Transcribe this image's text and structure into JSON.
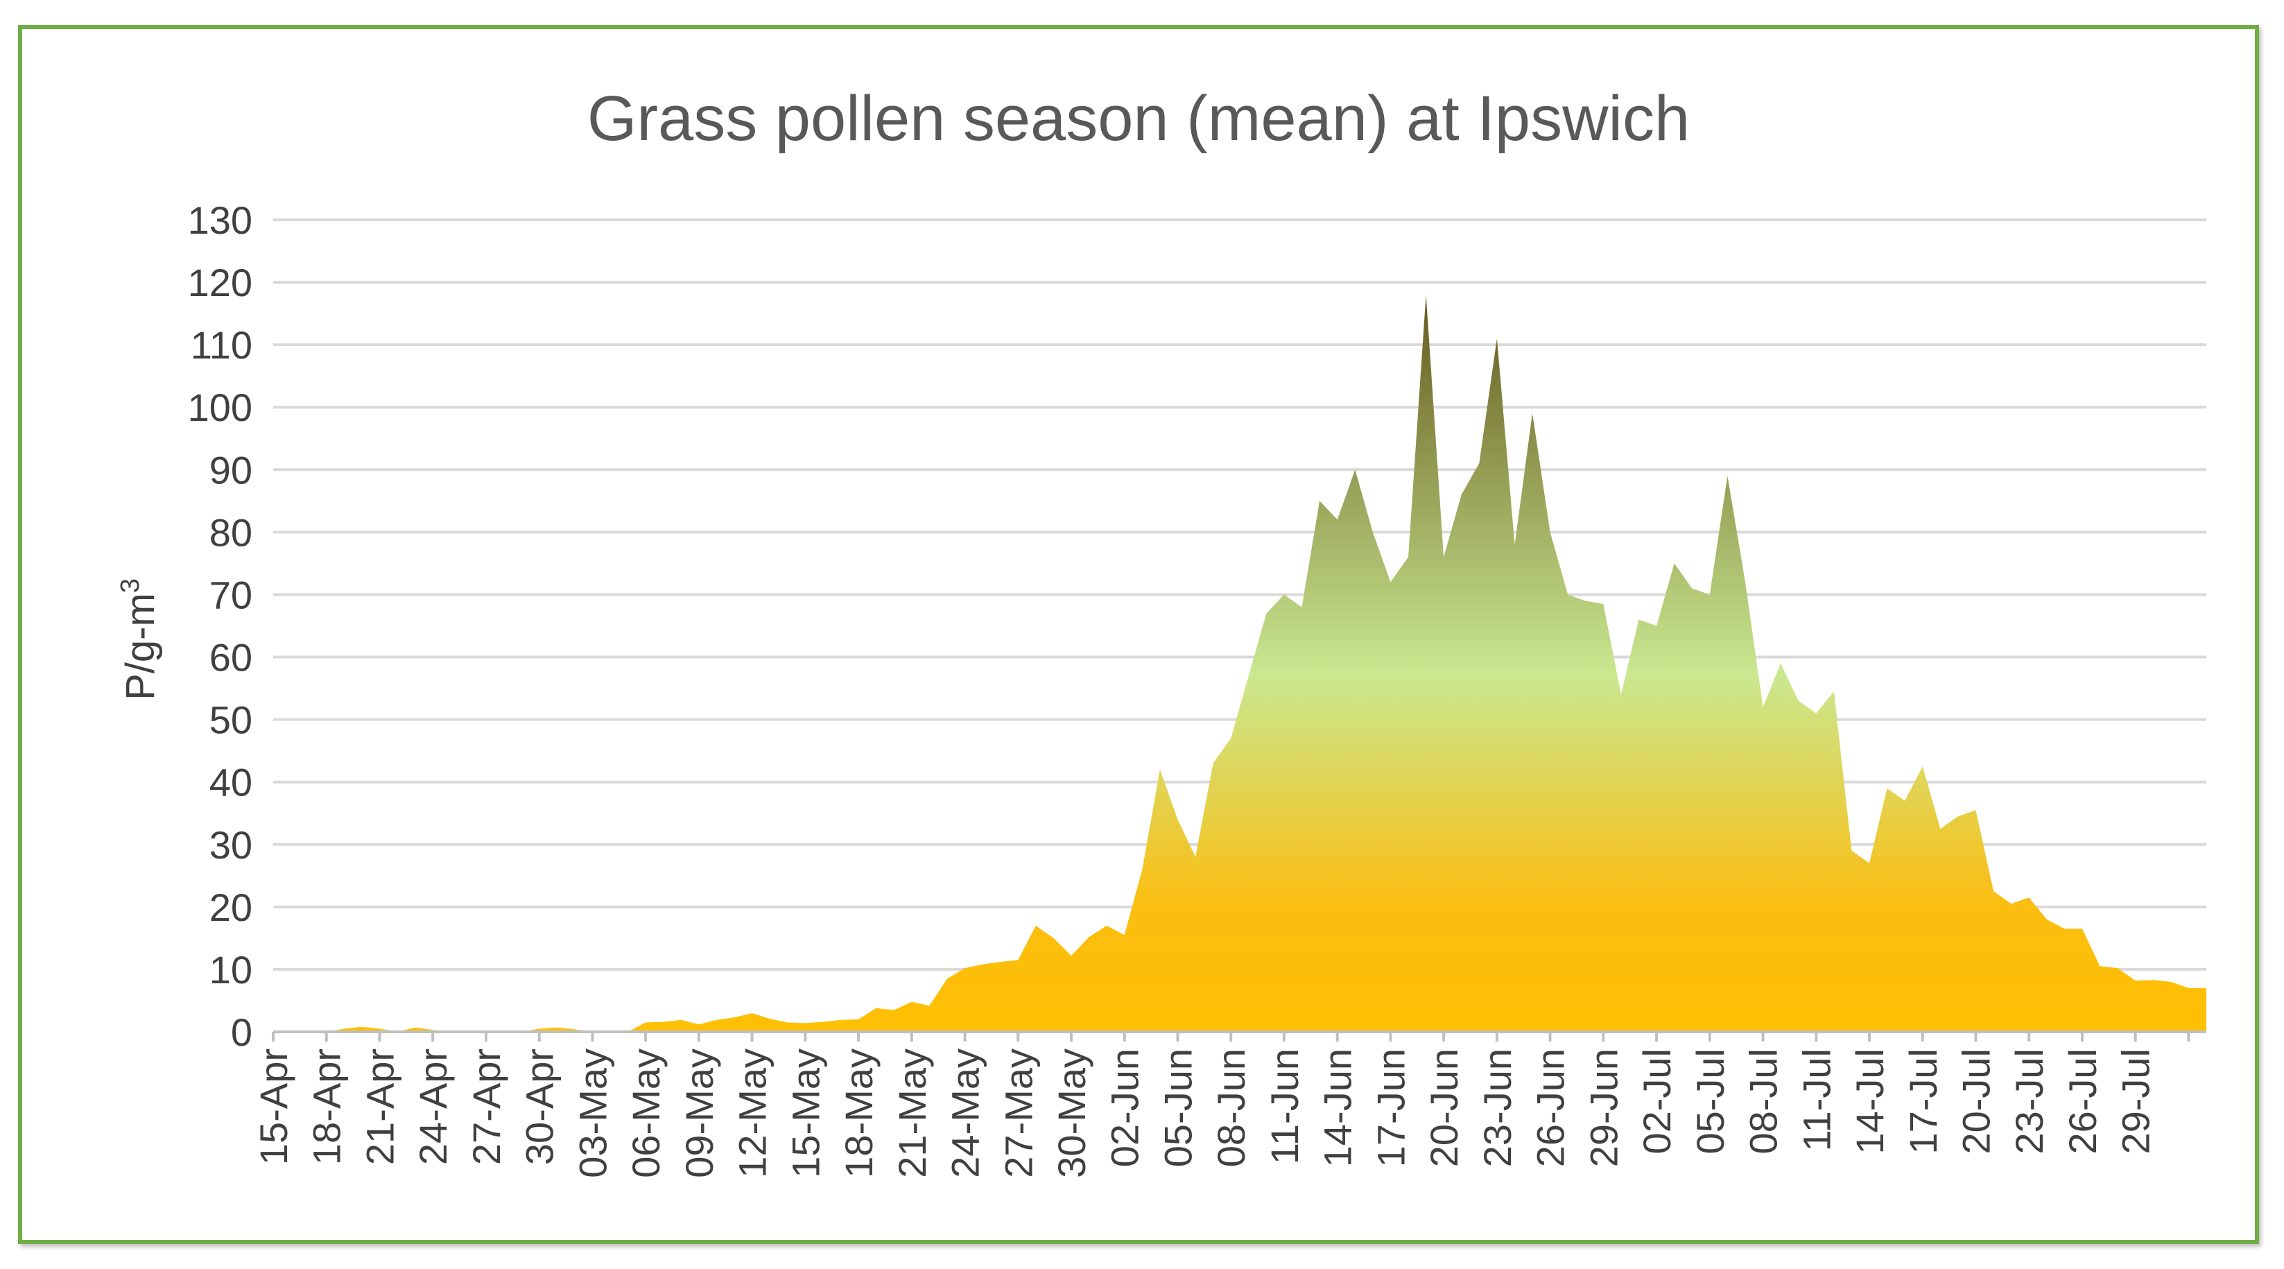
{
  "chart_data": {
    "type": "area",
    "title": "Grass pollen season (mean) at Ipswich",
    "ylabel_main": "P/g-m",
    "ylabel_sup": "3",
    "ylim": [
      0,
      130
    ],
    "yticks": [
      0,
      10,
      20,
      30,
      40,
      50,
      60,
      70,
      80,
      90,
      100,
      110,
      120,
      130
    ],
    "grid": true,
    "xtick_labels": [
      "15-Apr",
      "18-Apr",
      "21-Apr",
      "24-Apr",
      "27-Apr",
      "30-Apr",
      "03-May",
      "06-May",
      "09-May",
      "12-May",
      "15-May",
      "18-May",
      "21-May",
      "24-May",
      "27-May",
      "30-May",
      "02-Jun",
      "05-Jun",
      "08-Jun",
      "11-Jun",
      "14-Jun",
      "17-Jun",
      "20-Jun",
      "23-Jun",
      "26-Jun",
      "29-Jun",
      "02-Jul",
      "05-Jul",
      "08-Jul",
      "11-Jul",
      "14-Jul",
      "17-Jul",
      "20-Jul",
      "23-Jul",
      "26-Jul",
      "29-Jul"
    ],
    "x_start": "15-Apr",
    "x_end": "31-Jul",
    "values": [
      0,
      0,
      0,
      0,
      0.5,
      0.8,
      0.5,
      0,
      0.7,
      0.3,
      0,
      0,
      0,
      0,
      0,
      0.5,
      0.7,
      0.4,
      0,
      0,
      0,
      1.5,
      1.6,
      1.9,
      1.2,
      1.9,
      2.3,
      3.0,
      2.1,
      1.5,
      1.4,
      1.6,
      1.9,
      2.0,
      3.8,
      3.5,
      4.8,
      4.2,
      8.5,
      10.2,
      10.8,
      11.2,
      11.5,
      17.0,
      15.0,
      12.2,
      15.2,
      17.0,
      15.5,
      26.0,
      42.0,
      34.0,
      28.0,
      43.0,
      47.0,
      57.0,
      67.0,
      70.0,
      68.0,
      85.0,
      82.0,
      90.0,
      80.0,
      72.0,
      76.0,
      118.0,
      76.0,
      86.0,
      91.0,
      111.0,
      78.0,
      99.0,
      80.0,
      70.0,
      69.0,
      68.5,
      54.0,
      66.0,
      65.0,
      75.0,
      71.0,
      70.0,
      89.0,
      72.0,
      52.0,
      59.0,
      53.0,
      51.0,
      54.5,
      29.0,
      27.0,
      39.0,
      37.0,
      42.5,
      32.5,
      34.5,
      35.5,
      22.5,
      20.5,
      21.5,
      18.0,
      16.5,
      16.5,
      10.5,
      10.2,
      8.2,
      8.3,
      8.0,
      7.0,
      7.0
    ]
  }
}
